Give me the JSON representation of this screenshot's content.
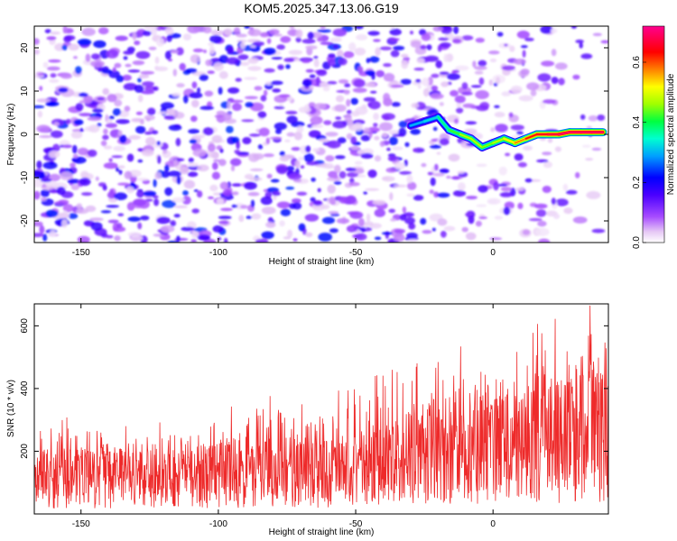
{
  "title": "KOM5.2025.347.13.06.G19",
  "chart_data": [
    {
      "type": "heatmap",
      "title": "KOM5.2025.347.13.06.G19",
      "xlabel": "Height of straight line (km)",
      "ylabel": "Frequency (Hz)",
      "xlim": [
        -167,
        42
      ],
      "ylim": [
        -25,
        25
      ],
      "xticks": [
        -150,
        -100,
        -50,
        0
      ],
      "xtick_labels": [
        "-150",
        "-100",
        "-50",
        "0"
      ],
      "yticks": [
        -20,
        -10,
        0,
        10,
        20
      ],
      "ytick_labels": [
        "-20",
        "-10",
        "0",
        "10",
        "20"
      ],
      "colorbar": {
        "label": "Normalized spectral amplitude",
        "range": [
          0,
          0.72
        ],
        "ticks": [
          0,
          0.2,
          0.4,
          0.6
        ],
        "tick_labels": [
          "0.0",
          "0.2",
          "0.4",
          "0.6"
        ],
        "colormap": "rainbow (white-violet-blue-cyan-green-yellow-red-magenta)"
      },
      "ridge": {
        "x": [
          -30,
          -25,
          -20,
          -16,
          -12,
          -8,
          -4,
          0,
          4,
          8,
          12,
          16,
          20,
          24,
          28,
          32,
          36,
          40
        ],
        "freq": [
          2,
          3,
          4,
          1,
          0,
          -1,
          -3,
          -2,
          -1,
          -2,
          -1,
          0,
          0,
          0,
          0.5,
          0.5,
          0.5,
          0.5
        ],
        "amplitude": [
          0.3,
          0.3,
          0.35,
          0.4,
          0.45,
          0.5,
          0.45,
          0.45,
          0.5,
          0.55,
          0.6,
          0.65,
          0.65,
          0.7,
          0.7,
          0.7,
          0.7,
          0.7
        ]
      }
    },
    {
      "type": "line",
      "xlabel": "Height of straight line (km)",
      "ylabel": "SNR (10 * v/v)",
      "xlim": [
        -167,
        42
      ],
      "ylim": [
        0,
        670
      ],
      "xticks": [
        -150,
        -100,
        -50,
        0
      ],
      "xtick_labels": [
        "-150",
        "-100",
        "-50",
        "0"
      ],
      "yticks": [
        200,
        400,
        600
      ],
      "ytick_labels": [
        "200",
        "400",
        "600"
      ],
      "series": [
        {
          "name": "SNR",
          "color": "#ee2a2a",
          "x": [
            -167,
            -150,
            -130,
            -110,
            -100,
            -90,
            -70,
            -50,
            -40,
            -35,
            -30,
            -20,
            -10,
            0,
            10,
            20,
            30,
            42
          ],
          "mean": [
            110,
            115,
            115,
            120,
            125,
            125,
            125,
            130,
            150,
            175,
            190,
            200,
            210,
            200,
            215,
            230,
            240,
            260
          ],
          "peak": [
            320,
            310,
            290,
            300,
            340,
            400,
            360,
            410,
            500,
            630,
            560,
            540,
            600,
            480,
            560,
            650,
            670,
            660
          ]
        }
      ]
    }
  ]
}
